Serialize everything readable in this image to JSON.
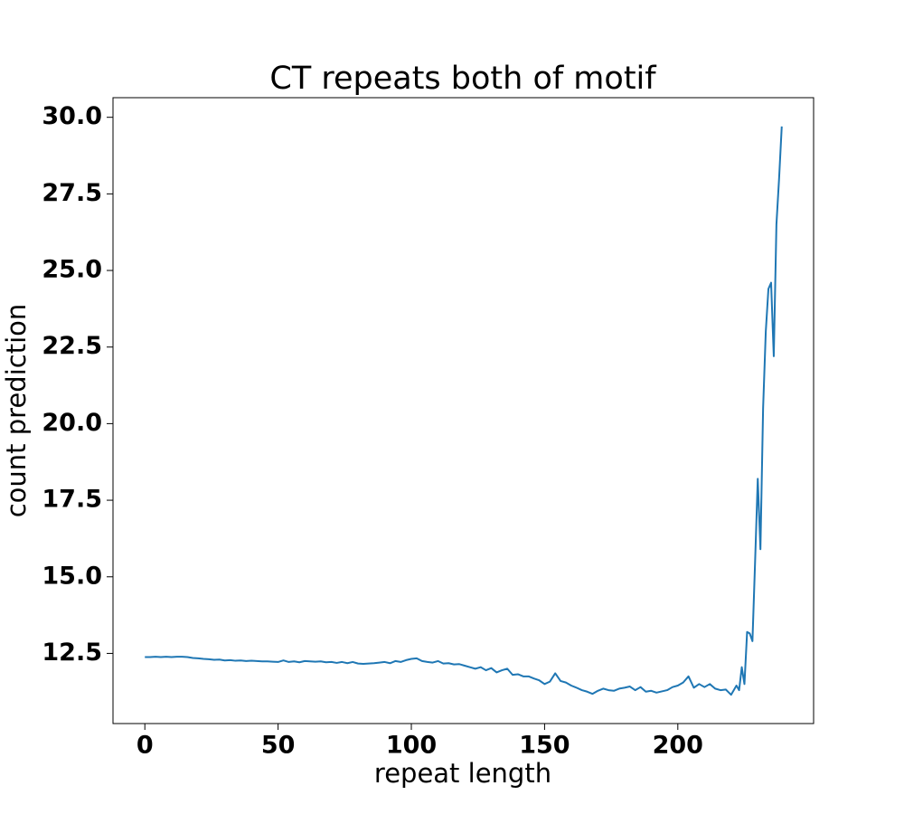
{
  "chart_data": {
    "type": "line",
    "title": "CT repeats both of motif",
    "xlabel": "repeat length",
    "ylabel": "count prediction",
    "x": [
      0,
      2,
      4,
      6,
      8,
      10,
      12,
      14,
      16,
      18,
      20,
      22,
      24,
      26,
      28,
      30,
      32,
      34,
      36,
      38,
      40,
      42,
      44,
      46,
      48,
      50,
      52,
      54,
      56,
      58,
      60,
      62,
      64,
      66,
      68,
      70,
      72,
      74,
      76,
      78,
      80,
      82,
      84,
      86,
      88,
      90,
      92,
      94,
      96,
      98,
      100,
      102,
      104,
      106,
      108,
      110,
      112,
      114,
      116,
      118,
      120,
      122,
      124,
      126,
      128,
      130,
      132,
      134,
      136,
      138,
      140,
      142,
      144,
      146,
      148,
      150,
      152,
      154,
      156,
      158,
      160,
      162,
      164,
      166,
      168,
      170,
      172,
      174,
      176,
      178,
      180,
      182,
      184,
      186,
      188,
      190,
      192,
      194,
      196,
      198,
      200,
      202,
      204,
      206,
      208,
      210,
      212,
      214,
      216,
      218,
      220,
      222,
      223,
      224,
      225,
      226,
      227,
      228,
      229,
      230,
      231,
      232,
      233,
      234,
      235,
      236,
      237,
      238,
      239
    ],
    "series": [
      {
        "name": "count prediction",
        "color": "#1f77b4",
        "values": [
          12.38,
          12.38,
          12.39,
          12.38,
          12.39,
          12.38,
          12.39,
          12.39,
          12.38,
          12.35,
          12.34,
          12.32,
          12.31,
          12.29,
          12.3,
          12.27,
          12.28,
          12.26,
          12.27,
          12.25,
          12.26,
          12.25,
          12.24,
          12.24,
          12.23,
          12.22,
          12.27,
          12.22,
          12.24,
          12.21,
          12.25,
          12.24,
          12.23,
          12.24,
          12.21,
          12.22,
          12.19,
          12.22,
          12.18,
          12.22,
          12.17,
          12.16,
          12.17,
          12.18,
          12.2,
          12.22,
          12.18,
          12.25,
          12.22,
          12.28,
          12.32,
          12.34,
          12.25,
          12.22,
          12.2,
          12.25,
          12.17,
          12.18,
          12.14,
          12.15,
          12.1,
          12.05,
          12.0,
          12.05,
          11.95,
          12.02,
          11.88,
          11.95,
          12.0,
          11.8,
          11.82,
          11.75,
          11.75,
          11.68,
          11.62,
          11.5,
          11.58,
          11.85,
          11.6,
          11.55,
          11.45,
          11.38,
          11.3,
          11.25,
          11.18,
          11.28,
          11.35,
          11.3,
          11.28,
          11.35,
          11.38,
          11.42,
          11.3,
          11.4,
          11.25,
          11.28,
          11.22,
          11.26,
          11.3,
          11.4,
          11.45,
          11.55,
          11.75,
          11.38,
          11.5,
          11.4,
          11.5,
          11.35,
          11.3,
          11.32,
          11.15,
          11.45,
          11.3,
          12.05,
          11.5,
          13.2,
          13.15,
          12.9,
          15.5,
          18.2,
          15.9,
          20.5,
          23.0,
          24.4,
          24.6,
          22.2,
          26.5,
          28.0,
          29.7
        ]
      }
    ],
    "xlim": [
      -11.95,
      250.95
    ],
    "xticks": [
      0,
      50,
      100,
      150,
      200
    ],
    "ylim": [
      10.21,
      30.64
    ],
    "yticks": [
      {
        "value": 12.5,
        "label": "12.5"
      },
      {
        "value": 15,
        "label": "15.0"
      },
      {
        "value": 17.5,
        "label": "17.5"
      },
      {
        "value": 20,
        "label": "20.0"
      },
      {
        "value": 22.5,
        "label": "22.5"
      },
      {
        "value": 25,
        "label": "25.0"
      },
      {
        "value": 27.5,
        "label": "27.5"
      },
      {
        "value": 30,
        "label": "30.0"
      }
    ],
    "grid": false
  }
}
